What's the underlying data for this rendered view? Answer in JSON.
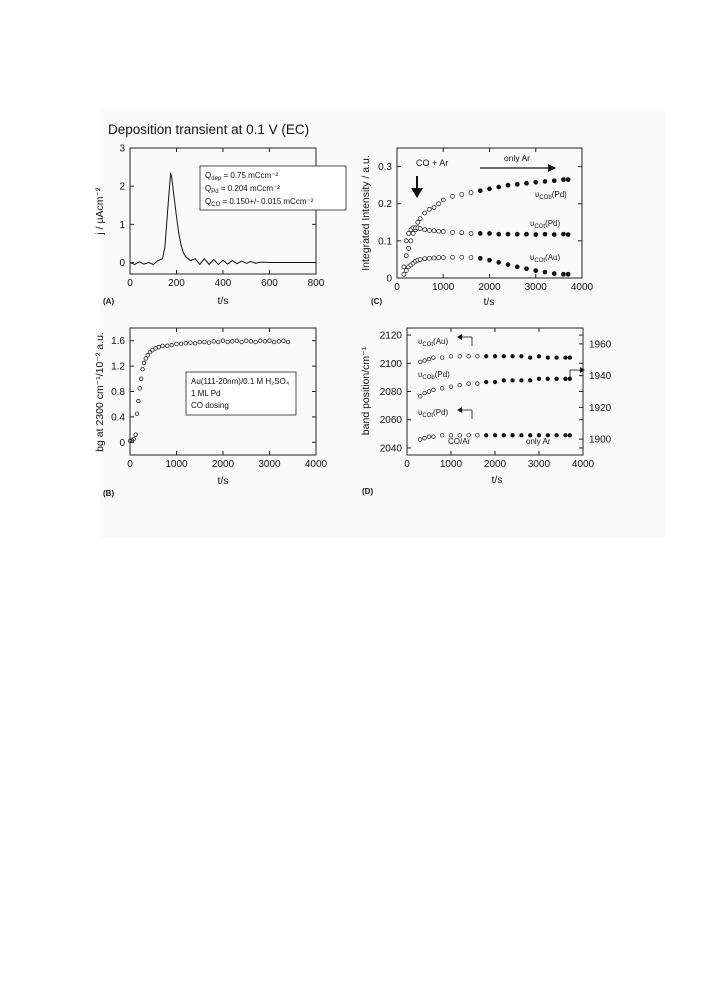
{
  "figure": {
    "title": "Deposition transient at 0.1 V  (EC)",
    "panels": {
      "A": {
        "letter": "(A)",
        "xlabel": "t/s",
        "ylabel": "j / µAcm⁻²",
        "legend_lines": [
          {
            "sym": "Q",
            "sub": "dep",
            "rest": " = 0.75 mCcm⁻²"
          },
          {
            "sym": "Q",
            "sub": "Pd",
            "rest": " = 0.204 mCcm⁻²"
          },
          {
            "sym": "Q",
            "sub": "CO",
            "rest": " = 0.150+/- 0.015 mCcm⁻²"
          }
        ]
      },
      "B": {
        "letter": "(B)",
        "xlabel": "t/s",
        "ylabel": "bg at 2300 cm⁻¹/10⁻² a.u.",
        "legend_lines": [
          "Au(111-20nm)/0.1 M H₂SO₄",
          "1 ML Pd",
          "CO dosing"
        ]
      },
      "C": {
        "letter": "(C)",
        "xlabel": "t/s",
        "ylabel": "Integrated Intensity / a.u.",
        "annot_co_ar": "CO + Ar",
        "annot_only_ar": "only Ar",
        "series_labels": [
          {
            "sym": "υ",
            "sub": "COb",
            "rest": "(Pd)"
          },
          {
            "sym": "υ",
            "sub": "COt",
            "rest": "(Pd)"
          },
          {
            "sym": "υ",
            "sub": "COt",
            "rest": "(Au)"
          }
        ]
      },
      "D": {
        "letter": "(D)",
        "xlabel": "t/s",
        "ylabel": "band position/cm⁻¹",
        "annot_co_ar": "CO/Ar",
        "annot_only_ar": "only Ar",
        "series_labels": [
          {
            "sym": "υ",
            "sub": "COt",
            "rest": "(Au)"
          },
          {
            "sym": "υ",
            "sub": "COb",
            "rest": "(Pd)"
          },
          {
            "sym": "υ",
            "sub": "COt",
            "rest": "(Pd)"
          }
        ]
      }
    }
  },
  "chart_data": [
    {
      "panel": "A",
      "type": "line",
      "title": "Deposition transient at 0.1 V  (EC)",
      "xlabel": "t/s",
      "ylabel": "j / µAcm⁻²",
      "xlim": [
        0,
        800
      ],
      "ylim": [
        -0.3,
        3
      ],
      "xticks": [
        0,
        200,
        400,
        600,
        800
      ],
      "yticks": [
        0,
        1,
        2,
        3
      ],
      "grid": false,
      "series": [
        {
          "x": [
            0,
            20,
            40,
            60,
            80,
            100,
            120,
            140,
            150,
            160,
            170,
            175,
            180,
            190,
            200,
            210,
            220,
            230,
            240,
            260,
            280,
            300,
            320,
            340,
            360,
            380,
            400,
            420,
            440,
            460,
            480,
            500,
            520,
            540,
            560,
            600,
            650,
            700,
            750,
            800
          ],
          "y": [
            0.0,
            -0.05,
            0.02,
            -0.04,
            0.0,
            -0.05,
            0.05,
            0.1,
            0.4,
            1.2,
            2.0,
            2.35,
            2.2,
            1.7,
            1.2,
            0.75,
            0.45,
            0.25,
            0.15,
            0.05,
            0.1,
            -0.05,
            0.1,
            -0.05,
            0.08,
            -0.05,
            0.06,
            -0.04,
            0.05,
            -0.03,
            0.04,
            -0.02,
            0.03,
            -0.02,
            0.01,
            0.0,
            0.0,
            0.0,
            0.0,
            0.0
          ]
        }
      ]
    },
    {
      "panel": "B",
      "type": "scatter",
      "xlabel": "t/s",
      "ylabel": "bg at 2300 cm⁻¹/10⁻² a.u.",
      "xlim": [
        0,
        4000
      ],
      "ylim": [
        -0.2,
        1.8
      ],
      "xticks": [
        0,
        1000,
        2000,
        3000,
        4000
      ],
      "yticks": [
        0,
        0.4,
        0.8,
        1.2,
        1.6
      ],
      "grid": false,
      "series": [
        {
          "x": [
            0,
            40,
            80,
            120,
            150,
            180,
            210,
            240,
            270,
            300,
            340,
            380,
            430,
            480,
            550,
            620,
            700,
            800,
            900,
            1000,
            1100,
            1200,
            1300,
            1400,
            1500,
            1600,
            1700,
            1800,
            1900,
            2000,
            2100,
            2200,
            2300,
            2400,
            2500,
            2600,
            2700,
            2800,
            2900,
            3000,
            3100,
            3200,
            3300,
            3400
          ],
          "y": [
            0.02,
            0.03,
            0.05,
            0.12,
            0.45,
            0.65,
            0.85,
            1.0,
            1.15,
            1.25,
            1.32,
            1.37,
            1.42,
            1.45,
            1.48,
            1.5,
            1.52,
            1.52,
            1.53,
            1.55,
            1.55,
            1.56,
            1.57,
            1.56,
            1.58,
            1.58,
            1.57,
            1.59,
            1.58,
            1.6,
            1.58,
            1.59,
            1.6,
            1.58,
            1.6,
            1.59,
            1.58,
            1.6,
            1.59,
            1.6,
            1.58,
            1.59,
            1.6,
            1.58
          ]
        }
      ]
    },
    {
      "panel": "C",
      "type": "scatter",
      "xlabel": "t/s",
      "ylabel": "Integrated Intensity / a.u.",
      "xlim": [
        0,
        4000
      ],
      "ylim": [
        0,
        0.35
      ],
      "xticks": [
        0,
        1000,
        2000,
        3000,
        4000
      ],
      "yticks": [
        0,
        0.1,
        0.2,
        0.3
      ],
      "grid": false,
      "series": [
        {
          "x": [
            150,
            200,
            250,
            300,
            350,
            400,
            450,
            500,
            600,
            700,
            800,
            900,
            1000,
            1200,
            1400,
            1600,
            1800,
            2000,
            2200,
            2400,
            2600,
            2800,
            3000,
            3200,
            3400,
            3600,
            3700
          ],
          "y": [
            0.03,
            0.06,
            0.08,
            0.1,
            0.12,
            0.13,
            0.15,
            0.16,
            0.175,
            0.185,
            0.19,
            0.2,
            0.21,
            0.22,
            0.225,
            0.23,
            0.235,
            0.24,
            0.245,
            0.25,
            0.252,
            0.255,
            0.258,
            0.26,
            0.262,
            0.265,
            0.265
          ]
        },
        {
          "x": [
            200,
            250,
            300,
            350,
            400,
            450,
            500,
            600,
            700,
            800,
            900,
            1000,
            1200,
            1400,
            1600,
            1800,
            2000,
            2200,
            2400,
            2600,
            2800,
            3000,
            3200,
            3400,
            3600,
            3700
          ],
          "y": [
            0.1,
            0.12,
            0.13,
            0.135,
            0.135,
            0.135,
            0.133,
            0.13,
            0.128,
            0.127,
            0.126,
            0.125,
            0.123,
            0.122,
            0.12,
            0.12,
            0.12,
            0.118,
            0.118,
            0.118,
            0.118,
            0.117,
            0.118,
            0.117,
            0.118,
            0.117
          ]
        },
        {
          "x": [
            150,
            200,
            250,
            300,
            350,
            400,
            450,
            500,
            600,
            700,
            800,
            900,
            1000,
            1200,
            1400,
            1600,
            1800,
            2000,
            2200,
            2400,
            2600,
            2800,
            3000,
            3200,
            3400,
            3600,
            3700
          ],
          "y": [
            0.01,
            0.02,
            0.03,
            0.035,
            0.04,
            0.045,
            0.048,
            0.05,
            0.052,
            0.053,
            0.054,
            0.055,
            0.055,
            0.056,
            0.056,
            0.055,
            0.053,
            0.048,
            0.042,
            0.036,
            0.03,
            0.025,
            0.02,
            0.016,
            0.012,
            0.01,
            0.01
          ]
        }
      ]
    },
    {
      "panel": "D",
      "type": "scatter",
      "xlabel": "t/s",
      "ylabel": "band position/cm⁻¹",
      "xlim": [
        0,
        4000
      ],
      "ylim": [
        2035,
        2125
      ],
      "y2lim": [
        1890,
        1970
      ],
      "xticks": [
        0,
        1000,
        2000,
        3000,
        4000
      ],
      "yticks": [
        2040,
        2060,
        2080,
        2100,
        2120
      ],
      "y2ticks": [
        1900,
        1920,
        1940,
        1960
      ],
      "grid": false,
      "series": [
        {
          "axis": "left",
          "x": [
            300,
            400,
            500,
            600,
            800,
            1000,
            1200,
            1400,
            1600,
            1800,
            2000,
            2200,
            2400,
            2600,
            2800,
            3000,
            3200,
            3400,
            3600,
            3700
          ],
          "y": [
            2101,
            2102,
            2103,
            2104,
            2104,
            2105,
            2105,
            2105,
            2105,
            2105,
            2105,
            2105,
            2105,
            2105,
            2104,
            2105,
            2104,
            2104,
            2104,
            2104
          ]
        },
        {
          "axis": "right",
          "x": [
            300,
            400,
            500,
            600,
            800,
            1000,
            1200,
            1400,
            1600,
            1800,
            2000,
            2200,
            2400,
            2600,
            2800,
            3000,
            3200,
            3400,
            3600,
            3700
          ],
          "y": [
            1927,
            1929,
            1930,
            1931,
            1932,
            1933,
            1934,
            1935,
            1935,
            1936,
            1936,
            1937,
            1937,
            1937,
            1937,
            1938,
            1938,
            1938,
            1938,
            1938
          ]
        },
        {
          "axis": "left",
          "x": [
            300,
            400,
            500,
            600,
            800,
            1000,
            1200,
            1400,
            1600,
            1800,
            2000,
            2200,
            2400,
            2600,
            2800,
            3000,
            3200,
            3400,
            3600,
            3700
          ],
          "y": [
            2046,
            2047,
            2048,
            2048,
            2049,
            2049,
            2049,
            2049,
            2049,
            2049,
            2049,
            2049,
            2049,
            2049,
            2049,
            2049,
            2049,
            2049,
            2049,
            2049
          ]
        }
      ]
    }
  ]
}
